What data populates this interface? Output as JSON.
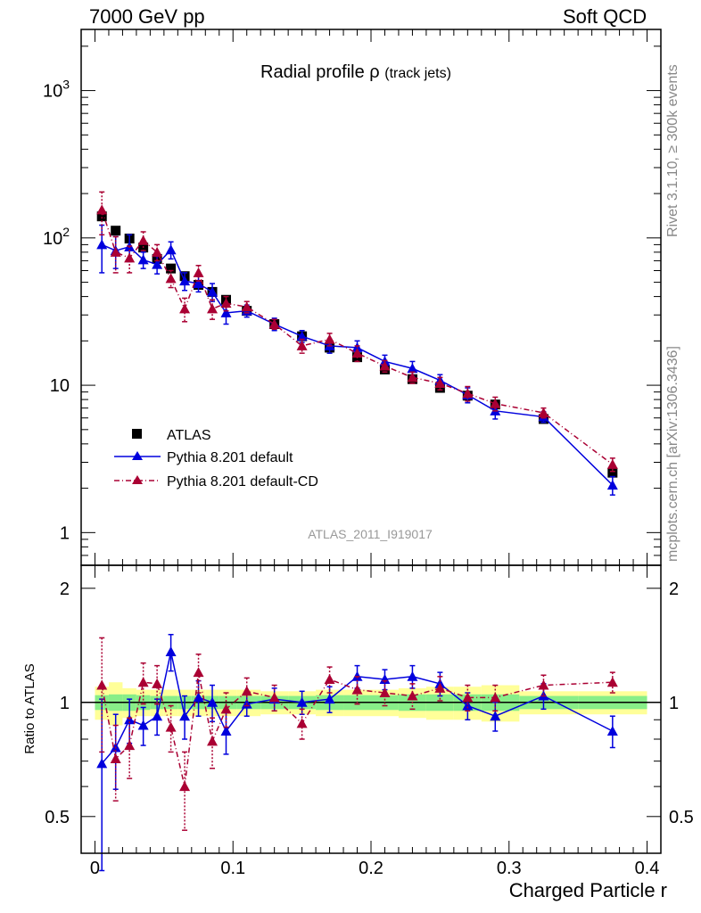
{
  "header": {
    "left": "7000 GeV pp",
    "right": "Soft QCD"
  },
  "side_labels": {
    "rivet": "Rivet 3.1.10, ≥ 300k events",
    "mcplots": "mcplots.cern.ch [arXiv:1306.3436]"
  },
  "colors": {
    "atlas": "#000000",
    "pythia_default": "#0000dd",
    "pythia_cd": "#aa0033",
    "band_inner": "#88ee88",
    "band_outer": "#ffff99"
  },
  "chart_data": {
    "type": "scatter",
    "title": "Radial profile",
    "title_symbol": "ρ",
    "title_suffix": "(track jets)",
    "analysis_id": "ATLAS_2011_I919017",
    "xlabel": "Charged Particle r",
    "ylabel_ratio": "Ratio to ATLAS",
    "xlim": [
      -0.01,
      0.41
    ],
    "ylim": [
      0.6,
      2600
    ],
    "yscale": "log",
    "ratio_ylim": [
      0.4,
      2.3
    ],
    "ratio_yscale": "log",
    "x_ticks": [
      "0",
      "0.1",
      "0.2",
      "0.3",
      "0.4"
    ],
    "y_ticks": [
      "1",
      "10",
      "10^2",
      "10^3"
    ],
    "ratio_y_ticks": [
      "0.5",
      "1",
      "2"
    ],
    "x": [
      0.005,
      0.015,
      0.025,
      0.035,
      0.045,
      0.055,
      0.065,
      0.075,
      0.085,
      0.095,
      0.11,
      0.13,
      0.15,
      0.17,
      0.19,
      0.21,
      0.23,
      0.25,
      0.27,
      0.29,
      0.325,
      0.375
    ],
    "series": [
      {
        "name": "ATLAS",
        "marker": "square",
        "values": [
          140,
          112,
          99,
          86,
          72,
          62,
          55,
          48,
          43,
          38,
          32,
          26,
          21.5,
          18,
          15.5,
          12.8,
          11,
          9.6,
          8.5,
          7.4,
          5.9,
          2.55
        ],
        "ratio": [
          1,
          1,
          1,
          1,
          1,
          1,
          1,
          1,
          1,
          1,
          1,
          1,
          1,
          1,
          1,
          1,
          1,
          1,
          1,
          1,
          1,
          1
        ]
      },
      {
        "name": "Pythia 8.201 default",
        "marker": "triangle",
        "line": "solid",
        "values": [
          90,
          82,
          87,
          71,
          66,
          83,
          51,
          49,
          43,
          31,
          32,
          26,
          21.5,
          18.5,
          18,
          14.5,
          13,
          10.8,
          8.6,
          6.7,
          6.1,
          2.1
        ],
        "errors": [
          32,
          20,
          18,
          9,
          9,
          11,
          7,
          6,
          6,
          5,
          3,
          2.5,
          2,
          2,
          2,
          1.5,
          1.5,
          1,
          1,
          0.8,
          0.5,
          0.3
        ],
        "ratio": [
          0.69,
          0.76,
          0.9,
          0.87,
          0.92,
          1.36,
          0.92,
          1.03,
          1.0,
          0.84,
          0.99,
          1.02,
          1.0,
          1.02,
          1.17,
          1.15,
          1.17,
          1.12,
          0.98,
          0.92,
          1.04,
          0.84
        ],
        "ratio_errors": [
          0.33,
          0.17,
          0.12,
          0.1,
          0.1,
          0.15,
          0.12,
          0.11,
          0.11,
          0.11,
          0.07,
          0.07,
          0.07,
          0.08,
          0.08,
          0.07,
          0.08,
          0.08,
          0.08,
          0.08,
          0.08,
          0.08
        ]
      },
      {
        "name": "Pythia 8.201 default-CD",
        "marker": "triangle",
        "line": "dashdot",
        "values": [
          155,
          80,
          73,
          96,
          80,
          53,
          33,
          58,
          33,
          36,
          34,
          26,
          18.5,
          20.5,
          16.5,
          13.5,
          11.3,
          10.3,
          8.8,
          7.5,
          6.5,
          2.9
        ],
        "errors": [
          50,
          22,
          15,
          14,
          10,
          7,
          6,
          7,
          5,
          4,
          3,
          2,
          2,
          2,
          2,
          1.2,
          1,
          1,
          1,
          0.8,
          0.5,
          0.3
        ],
        "ratio": [
          1.11,
          0.71,
          0.77,
          1.13,
          1.12,
          0.86,
          0.6,
          1.2,
          0.79,
          0.96,
          1.07,
          1.03,
          0.88,
          1.15,
          1.08,
          1.06,
          1.04,
          1.09,
          1.03,
          1.03,
          1.11,
          1.13
        ],
        "ratio_errors": [
          0.37,
          0.16,
          0.14,
          0.14,
          0.13,
          0.12,
          0.14,
          0.14,
          0.12,
          0.1,
          0.09,
          0.08,
          0.08,
          0.09,
          0.09,
          0.08,
          0.08,
          0.08,
          0.08,
          0.08,
          0.07,
          0.07
        ]
      }
    ],
    "bands": {
      "inner": [
        0.045,
        0.05,
        0.05,
        0.045,
        0.04,
        0.04,
        0.04,
        0.04,
        0.04,
        0.04,
        0.04,
        0.04,
        0.04,
        0.045,
        0.045,
        0.045,
        0.05,
        0.05,
        0.05,
        0.05,
        0.04,
        0.04
      ],
      "outer": [
        0.1,
        0.13,
        0.09,
        0.08,
        0.08,
        0.08,
        0.08,
        0.08,
        0.08,
        0.08,
        0.08,
        0.07,
        0.07,
        0.08,
        0.08,
        0.08,
        0.09,
        0.1,
        0.1,
        0.11,
        0.07,
        0.07
      ]
    }
  }
}
